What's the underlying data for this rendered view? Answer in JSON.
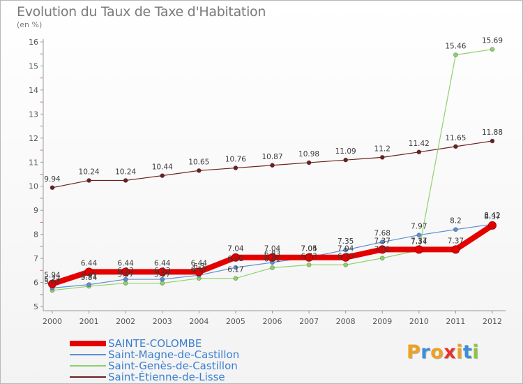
{
  "title": "Evolution du Taux de Taxe d'Habitation",
  "unit_label": "(en %)",
  "logo": {
    "text": "Proxiti",
    "colors": [
      "#f0a020",
      "#3a8fd8",
      "#f0a020",
      "#e83030",
      "#f0a020",
      "#3a8fd8",
      "#8cc63f"
    ]
  },
  "chart_data": {
    "type": "line",
    "x": [
      "2000",
      "2001",
      "2002",
      "2003",
      "2004",
      "2005",
      "2006",
      "2007",
      "2008",
      "2009",
      "2010",
      "2011",
      "2012"
    ],
    "ylim": [
      5,
      16
    ],
    "yticks": [
      5,
      6,
      7,
      8,
      9,
      10,
      11,
      12,
      13,
      14,
      15,
      16
    ],
    "grid": false,
    "legend_position": "bottom-left",
    "series": [
      {
        "name": "Saint-Étienne-de-Lisse",
        "color": "#6b2020",
        "line_width": 1.2,
        "values": [
          9.94,
          10.24,
          10.24,
          10.44,
          10.65,
          10.76,
          10.87,
          10.98,
          11.09,
          11.2,
          11.42,
          11.65,
          11.88
        ],
        "labels": [
          "9.94",
          "10.24",
          "10.24",
          "10.44",
          "10.65",
          "10.76",
          "10.87",
          "10.98",
          "11.09",
          "11.2",
          "11.42",
          "11.65",
          "11.88"
        ]
      },
      {
        "name": "Saint-Genès-de-Castillon",
        "color": "#8fd16a",
        "line_width": 1.2,
        "values": [
          5.67,
          5.84,
          5.97,
          5.97,
          6.17,
          6.17,
          6.61,
          6.73,
          6.73,
          7.01,
          7.34,
          15.46,
          15.69
        ],
        "labels": [
          "5.67",
          "5.84",
          "5.97",
          "5.97",
          "6.17",
          "6.17",
          "6.61",
          "6.73",
          "6.73",
          "7.01",
          "7.34",
          "15.46",
          "15.69"
        ]
      },
      {
        "name": "Saint-Magne-de-Castillon",
        "color": "#5b8fd4",
        "line_width": 1.2,
        "values": [
          5.77,
          5.91,
          6.13,
          6.13,
          6.3,
          6.62,
          6.83,
          7.05,
          7.35,
          7.68,
          7.97,
          8.2,
          8.42
        ],
        "labels": [
          "5.77",
          "5.91",
          "6.13",
          "6.13",
          "6.3",
          "6.62",
          "6.83",
          "7.05",
          "7.35",
          "7.68",
          "7.97",
          "8.2",
          "8.42"
        ]
      },
      {
        "name": "SAINTE-COLOMBE",
        "color": "#e50000",
        "line_width": 8,
        "values": [
          5.94,
          6.44,
          6.44,
          6.44,
          6.44,
          7.04,
          7.04,
          7.04,
          7.04,
          7.37,
          7.37,
          7.37,
          8.37
        ],
        "labels": [
          "5.94",
          "6.44",
          "6.44",
          "6.44",
          "6.44",
          "7.04",
          "7.04",
          "7.04",
          "7.04",
          "7.37",
          "7.37",
          "7.37",
          "8.37"
        ]
      }
    ]
  },
  "legend_order": [
    "SAINTE-COLOMBE",
    "Saint-Magne-de-Castillon",
    "Saint-Genès-de-Castillon",
    "Saint-Étienne-de-Lisse"
  ]
}
